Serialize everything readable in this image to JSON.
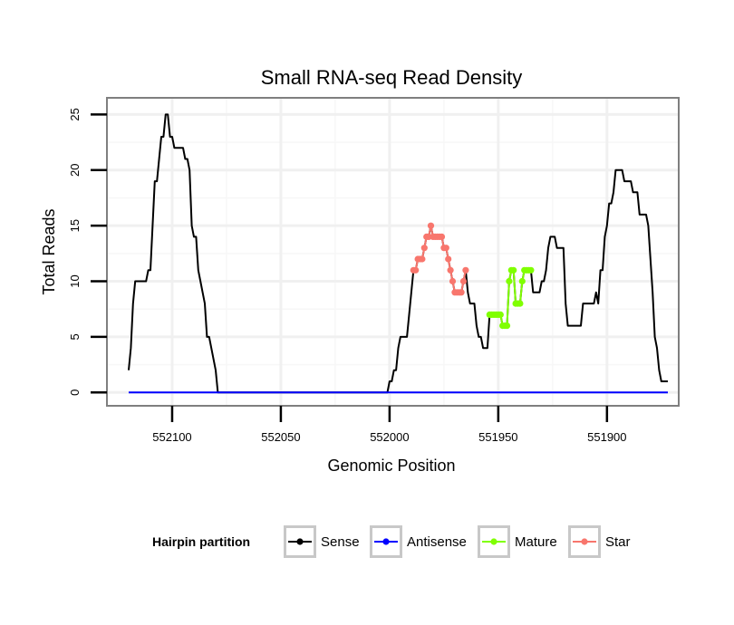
{
  "chart_data": {
    "type": "line",
    "title": "Small RNA-seq Read Density",
    "xlabel": "Genomic Position",
    "ylabel": "Total Reads",
    "xlim": [
      552130,
      551867
    ],
    "x_reversed": true,
    "ylim": [
      -1.2,
      26.5
    ],
    "x_ticks": [
      552100,
      552050,
      552000,
      551950,
      551900
    ],
    "y_ticks": [
      0,
      5,
      10,
      15,
      20,
      25
    ],
    "grid": true,
    "legend": {
      "title": "Hairpin partition",
      "position": "bottom",
      "entries": [
        {
          "name": "Sense",
          "color": "#000000"
        },
        {
          "name": "Antisense",
          "color": "#0000ff"
        },
        {
          "name": "Mature",
          "color": "#80ff00"
        },
        {
          "name": "Star",
          "color": "#f8766d"
        }
      ]
    },
    "series": [
      {
        "name": "Sense",
        "color": "#000000",
        "points": [
          [
            552120,
            2
          ],
          [
            552119,
            4
          ],
          [
            552118,
            8
          ],
          [
            552117,
            10
          ],
          [
            552116,
            10
          ],
          [
            552115,
            10
          ],
          [
            552114,
            10
          ],
          [
            552113,
            10
          ],
          [
            552112,
            10
          ],
          [
            552111,
            11
          ],
          [
            552110,
            11
          ],
          [
            552109,
            15
          ],
          [
            552108,
            19
          ],
          [
            552107,
            19
          ],
          [
            552106,
            21
          ],
          [
            552105,
            23
          ],
          [
            552104,
            23
          ],
          [
            552103,
            25
          ],
          [
            552102,
            25
          ],
          [
            552101,
            23
          ],
          [
            552100,
            23
          ],
          [
            552099,
            22
          ],
          [
            552098,
            22
          ],
          [
            552097,
            22
          ],
          [
            552096,
            22
          ],
          [
            552095,
            22
          ],
          [
            552094,
            21
          ],
          [
            552093,
            21
          ],
          [
            552092,
            20
          ],
          [
            552091,
            15
          ],
          [
            552090,
            14
          ],
          [
            552089,
            14
          ],
          [
            552088,
            11
          ],
          [
            552087,
            10
          ],
          [
            552086,
            9
          ],
          [
            552085,
            8
          ],
          [
            552084,
            5
          ],
          [
            552083,
            5
          ],
          [
            552082,
            4
          ],
          [
            552081,
            3
          ],
          [
            552080,
            2
          ],
          [
            552079,
            0
          ],
          [
            552070,
            0
          ],
          [
            552060,
            0
          ],
          [
            552050,
            0
          ],
          [
            552040,
            0
          ],
          [
            552030,
            0
          ],
          [
            552020,
            0
          ],
          [
            552010,
            0
          ],
          [
            552002,
            0
          ],
          [
            552001,
            0
          ],
          [
            552000,
            1
          ],
          [
            551999,
            1
          ],
          [
            551998,
            2
          ],
          [
            551997,
            2
          ],
          [
            551996,
            4
          ],
          [
            551995,
            5
          ],
          [
            551994,
            5
          ],
          [
            551993,
            5
          ],
          [
            551992,
            5
          ],
          [
            551991,
            7
          ],
          [
            551990,
            9
          ],
          [
            551989,
            11
          ],
          [
            551988,
            11
          ],
          [
            551987,
            12
          ],
          [
            551986,
            12
          ],
          [
            551985,
            12
          ],
          [
            551984,
            13
          ],
          [
            551983,
            14
          ],
          [
            551982,
            14
          ],
          [
            551981,
            15
          ],
          [
            551980,
            14
          ],
          [
            551979,
            14
          ],
          [
            551978,
            14
          ],
          [
            551977,
            14
          ],
          [
            551976,
            14
          ],
          [
            551975,
            13
          ],
          [
            551974,
            13
          ],
          [
            551973,
            12
          ],
          [
            551972,
            11
          ],
          [
            551971,
            10
          ],
          [
            551970,
            9
          ],
          [
            551969,
            9
          ],
          [
            551968,
            9
          ],
          [
            551967,
            9
          ],
          [
            551966,
            10
          ],
          [
            551965,
            11
          ],
          [
            551964,
            9
          ],
          [
            551963,
            8
          ],
          [
            551962,
            8
          ],
          [
            551961,
            8
          ],
          [
            551960,
            6
          ],
          [
            551959,
            5
          ],
          [
            551958,
            5
          ],
          [
            551957,
            4
          ],
          [
            551956,
            4
          ],
          [
            551955,
            4
          ],
          [
            551954,
            7
          ],
          [
            551953,
            7
          ],
          [
            551952,
            7
          ],
          [
            551951,
            7
          ],
          [
            551950,
            7
          ],
          [
            551949,
            7
          ],
          [
            551948,
            6
          ],
          [
            551947,
            6
          ],
          [
            551946,
            6
          ],
          [
            551945,
            10
          ],
          [
            551944,
            11
          ],
          [
            551943,
            11
          ],
          [
            551942,
            8
          ],
          [
            551941,
            8
          ],
          [
            551940,
            8
          ],
          [
            551939,
            10
          ],
          [
            551938,
            11
          ],
          [
            551937,
            11
          ],
          [
            551936,
            11
          ],
          [
            551935,
            11
          ],
          [
            551934,
            9
          ],
          [
            551933,
            9
          ],
          [
            551932,
            9
          ],
          [
            551931,
            9
          ],
          [
            551930,
            10
          ],
          [
            551929,
            10
          ],
          [
            551928,
            11
          ],
          [
            551927,
            13
          ],
          [
            551926,
            14
          ],
          [
            551925,
            14
          ],
          [
            551924,
            14
          ],
          [
            551923,
            13
          ],
          [
            551922,
            13
          ],
          [
            551921,
            13
          ],
          [
            551920,
            13
          ],
          [
            551919,
            8
          ],
          [
            551918,
            6
          ],
          [
            551917,
            6
          ],
          [
            551916,
            6
          ],
          [
            551915,
            6
          ],
          [
            551914,
            6
          ],
          [
            551913,
            6
          ],
          [
            551912,
            6
          ],
          [
            551911,
            8
          ],
          [
            551910,
            8
          ],
          [
            551909,
            8
          ],
          [
            551908,
            8
          ],
          [
            551907,
            8
          ],
          [
            551906,
            8
          ],
          [
            551905,
            9
          ],
          [
            551904,
            8
          ],
          [
            551903,
            11
          ],
          [
            551902,
            11
          ],
          [
            551901,
            14
          ],
          [
            551900,
            15
          ],
          [
            551899,
            17
          ],
          [
            551898,
            17
          ],
          [
            551897,
            18
          ],
          [
            551896,
            20
          ],
          [
            551895,
            20
          ],
          [
            551894,
            20
          ],
          [
            551893,
            20
          ],
          [
            551892,
            19
          ],
          [
            551891,
            19
          ],
          [
            551890,
            19
          ],
          [
            551889,
            19
          ],
          [
            551888,
            18
          ],
          [
            551887,
            18
          ],
          [
            551886,
            18
          ],
          [
            551885,
            16
          ],
          [
            551884,
            16
          ],
          [
            551883,
            16
          ],
          [
            551882,
            16
          ],
          [
            551881,
            15
          ],
          [
            551880,
            12
          ],
          [
            551879,
            9
          ],
          [
            551878,
            5
          ],
          [
            551877,
            4
          ],
          [
            551876,
            2
          ],
          [
            551875,
            1
          ],
          [
            551874,
            1
          ],
          [
            551873,
            1
          ],
          [
            551872,
            1
          ]
        ]
      },
      {
        "name": "Antisense",
        "color": "#0000ff",
        "points": [
          [
            552120,
            0
          ],
          [
            551872,
            0
          ]
        ]
      },
      {
        "name": "Star",
        "color": "#f8766d",
        "points": [
          [
            551989,
            11
          ],
          [
            551988,
            11
          ],
          [
            551987,
            12
          ],
          [
            551986,
            12
          ],
          [
            551985,
            12
          ],
          [
            551984,
            13
          ],
          [
            551983,
            14
          ],
          [
            551982,
            14
          ],
          [
            551981,
            15
          ],
          [
            551980,
            14
          ],
          [
            551979,
            14
          ],
          [
            551978,
            14
          ],
          [
            551977,
            14
          ],
          [
            551976,
            14
          ],
          [
            551975,
            13
          ],
          [
            551974,
            13
          ],
          [
            551973,
            12
          ],
          [
            551972,
            11
          ],
          [
            551971,
            10
          ],
          [
            551970,
            9
          ],
          [
            551969,
            9
          ],
          [
            551968,
            9
          ],
          [
            551967,
            9
          ],
          [
            551966,
            10
          ],
          [
            551965,
            11
          ]
        ]
      },
      {
        "name": "Mature",
        "color": "#80ff00",
        "points": [
          [
            551954,
            7
          ],
          [
            551953,
            7
          ],
          [
            551952,
            7
          ],
          [
            551951,
            7
          ],
          [
            551950,
            7
          ],
          [
            551949,
            7
          ],
          [
            551948,
            6
          ],
          [
            551947,
            6
          ],
          [
            551946,
            6
          ],
          [
            551945,
            10
          ],
          [
            551944,
            11
          ],
          [
            551943,
            11
          ],
          [
            551942,
            8
          ],
          [
            551941,
            8
          ],
          [
            551940,
            8
          ],
          [
            551939,
            10
          ],
          [
            551938,
            11
          ],
          [
            551937,
            11
          ],
          [
            551936,
            11
          ],
          [
            551935,
            11
          ]
        ]
      }
    ]
  }
}
